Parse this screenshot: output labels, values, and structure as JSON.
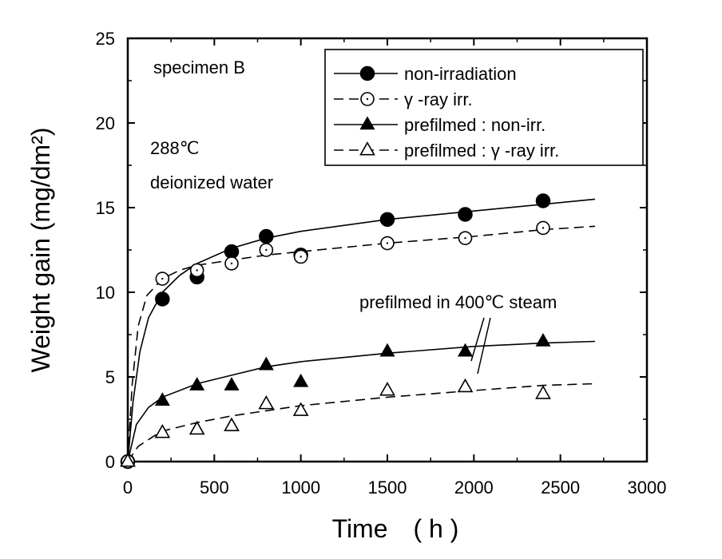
{
  "chart_data": {
    "type": "scatter",
    "title": "",
    "xlabel": "Time　( h )",
    "ylabel": "Weight gain (mg/dm²)",
    "xlim": [
      0,
      3000
    ],
    "ylim": [
      0,
      25
    ],
    "x_ticks": [
      "0",
      "500",
      "1000",
      "1500",
      "2000",
      "2500",
      "3000"
    ],
    "y_ticks": [
      "0",
      "5",
      "10",
      "15",
      "20",
      "25"
    ],
    "grid": false,
    "legend_position": "top-right",
    "series": [
      {
        "name": "non-irradiation",
        "marker": "filled-circle",
        "line": "solid",
        "x": [
          0,
          200,
          400,
          600,
          800,
          1000,
          1500,
          1950,
          2400
        ],
        "y": [
          0,
          9.6,
          10.9,
          12.4,
          13.3,
          12.2,
          14.3,
          14.6,
          15.4
        ],
        "fit": [
          [
            0,
            0
          ],
          [
            30,
            3.5
          ],
          [
            70,
            6.5
          ],
          [
            120,
            8.5
          ],
          [
            200,
            10.0
          ],
          [
            300,
            11.0
          ],
          [
            400,
            11.7
          ],
          [
            600,
            12.6
          ],
          [
            800,
            13.2
          ],
          [
            1000,
            13.6
          ],
          [
            1500,
            14.3
          ],
          [
            2000,
            14.8
          ],
          [
            2400,
            15.2
          ],
          [
            2700,
            15.5
          ]
        ]
      },
      {
        "name": "γ -ray irr.",
        "marker": "open-circle",
        "line": "dashed",
        "x": [
          0,
          200,
          400,
          600,
          800,
          1000,
          1500,
          1950,
          2400
        ],
        "y": [
          0,
          10.8,
          11.3,
          11.7,
          12.5,
          12.1,
          12.9,
          13.2,
          13.8
        ],
        "fit": [
          [
            0,
            0
          ],
          [
            25,
            4.5
          ],
          [
            60,
            8.0
          ],
          [
            110,
            9.8
          ],
          [
            200,
            10.8
          ],
          [
            300,
            11.3
          ],
          [
            400,
            11.6
          ],
          [
            600,
            11.9
          ],
          [
            800,
            12.2
          ],
          [
            1000,
            12.4
          ],
          [
            1500,
            12.9
          ],
          [
            2000,
            13.3
          ],
          [
            2400,
            13.7
          ],
          [
            2700,
            13.9
          ]
        ]
      },
      {
        "name": "prefilmed : non-irr.",
        "marker": "filled-triangle",
        "line": "solid",
        "x": [
          0,
          200,
          400,
          600,
          800,
          1000,
          1500,
          1950,
          2400
        ],
        "y": [
          0,
          3.6,
          4.5,
          4.5,
          5.7,
          4.7,
          6.5,
          6.5,
          7.1
        ],
        "fit": [
          [
            0,
            0
          ],
          [
            50,
            2.2
          ],
          [
            120,
            3.2
          ],
          [
            200,
            3.8
          ],
          [
            400,
            4.6
          ],
          [
            600,
            5.1
          ],
          [
            800,
            5.6
          ],
          [
            1000,
            5.9
          ],
          [
            1500,
            6.4
          ],
          [
            2000,
            6.8
          ],
          [
            2400,
            7.0
          ],
          [
            2700,
            7.1
          ]
        ]
      },
      {
        "name": "prefilmed : γ -ray irr.",
        "marker": "open-triangle",
        "line": "dashed",
        "x": [
          0,
          200,
          400,
          600,
          800,
          1000,
          1500,
          1950,
          2400
        ],
        "y": [
          0,
          1.7,
          1.9,
          2.1,
          3.4,
          3.0,
          4.2,
          4.4,
          4.0
        ],
        "fit": [
          [
            0,
            0
          ],
          [
            60,
            0.9
          ],
          [
            150,
            1.5
          ],
          [
            200,
            1.8
          ],
          [
            400,
            2.3
          ],
          [
            600,
            2.7
          ],
          [
            800,
            3.0
          ],
          [
            1000,
            3.3
          ],
          [
            1500,
            3.8
          ],
          [
            2000,
            4.2
          ],
          [
            2400,
            4.5
          ],
          [
            2700,
            4.6
          ]
        ]
      }
    ],
    "annotations": [
      {
        "text": "specimen B"
      },
      {
        "text": "288℃"
      },
      {
        "text": "deionized  water"
      },
      {
        "text": "prefilmed in 400℃ steam"
      }
    ]
  }
}
